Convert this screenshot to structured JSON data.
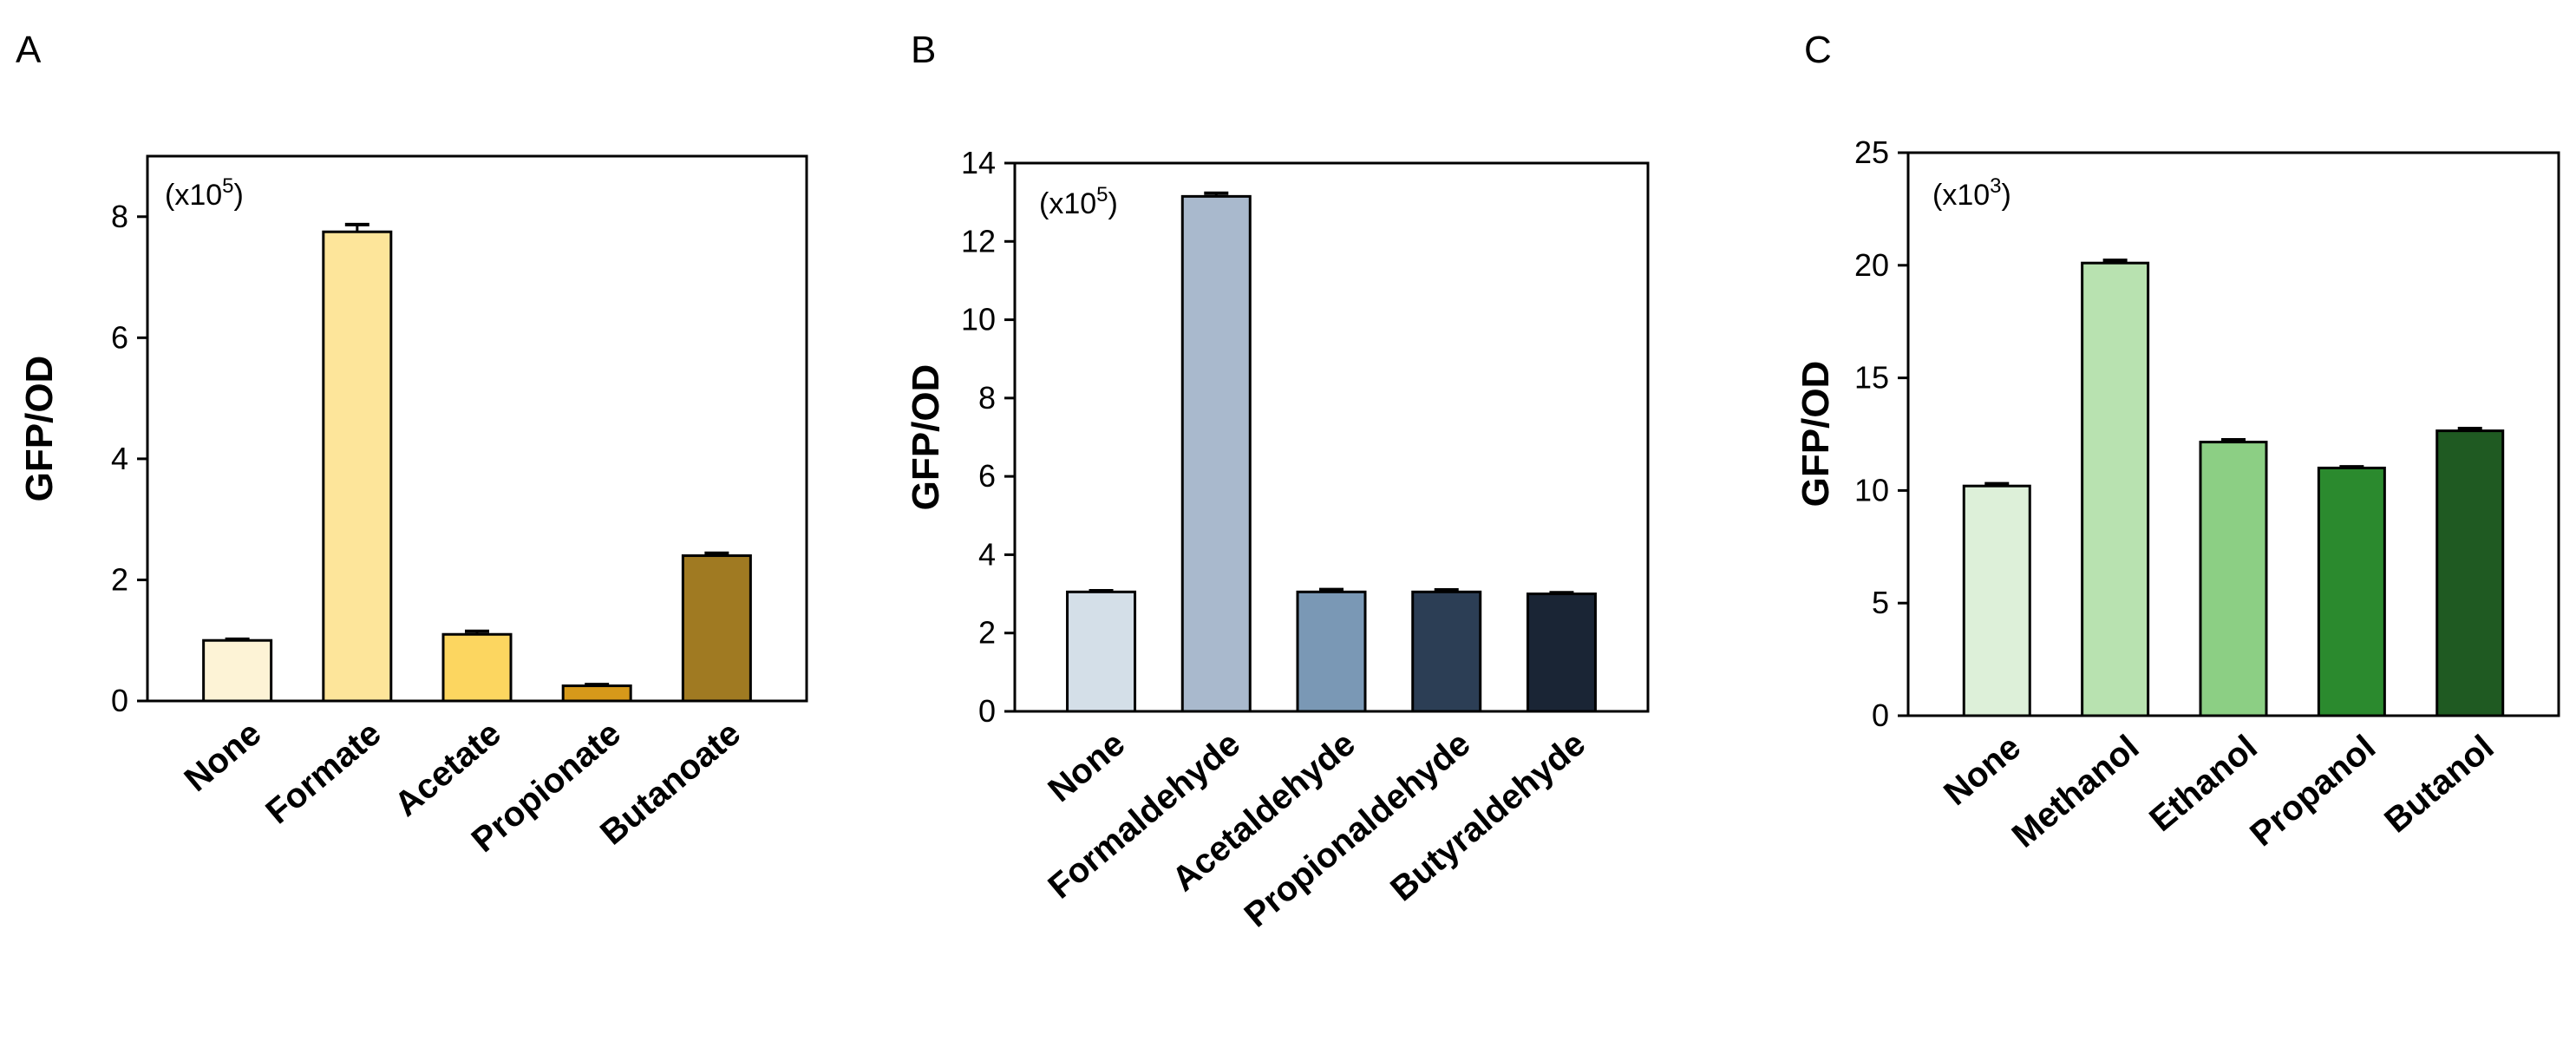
{
  "chart_data": [
    {
      "type": "bar",
      "panel": "A",
      "title": "",
      "ylabel": "GFP/OD",
      "xlabel": "",
      "multiplier": {
        "prefix": "(x10",
        "exponent": "5",
        "suffix": ")"
      },
      "ylim": [
        0,
        9
      ],
      "yticks": [
        0,
        2,
        4,
        6,
        8
      ],
      "categories": [
        "None",
        "Formate",
        "Acetate",
        "Propionate",
        "Butanoate"
      ],
      "values": [
        1.0,
        7.75,
        1.1,
        0.25,
        2.4
      ],
      "errors": [
        0.02,
        0.12,
        0.05,
        0.02,
        0.04
      ],
      "colors": [
        "#fdf3d6",
        "#fde59a",
        "#fcd660",
        "#d6991a",
        "#a07a22"
      ],
      "grid": false
    },
    {
      "type": "bar",
      "panel": "B",
      "title": "",
      "ylabel": "GFP/OD",
      "xlabel": "",
      "multiplier": {
        "prefix": "(x10",
        "exponent": "5",
        "suffix": ")"
      },
      "ylim": [
        0,
        14
      ],
      "yticks": [
        0,
        2,
        4,
        6,
        8,
        10,
        12,
        14
      ],
      "categories": [
        "None",
        "Formaldehyde",
        "Acetaldehyde",
        "Propionaldehyde",
        "Butyraldehyde"
      ],
      "values": [
        3.05,
        13.15,
        3.05,
        3.05,
        3.0
      ],
      "errors": [
        0.03,
        0.08,
        0.06,
        0.05,
        0.03
      ],
      "colors": [
        "#d4dfe8",
        "#a9b9cd",
        "#7a98b5",
        "#2c3e55",
        "#1a2535"
      ],
      "grid": false
    },
    {
      "type": "bar",
      "panel": "C",
      "title": "",
      "ylabel": "GFP/OD",
      "xlabel": "",
      "multiplier": {
        "prefix": "(x10",
        "exponent": "3",
        "suffix": ")"
      },
      "ylim": [
        0,
        25
      ],
      "yticks": [
        0,
        5,
        10,
        15,
        20,
        25
      ],
      "categories": [
        "None",
        "Methanol",
        "Ethanol",
        "Propanol",
        "Butanol"
      ],
      "values": [
        10.2,
        20.1,
        12.15,
        11.0,
        12.65
      ],
      "errors": [
        0.1,
        0.12,
        0.1,
        0.05,
        0.1
      ],
      "colors": [
        "#ddf0d9",
        "#b8e2b0",
        "#8ccf84",
        "#2b8a2e",
        "#1f5a22"
      ],
      "grid": false
    }
  ]
}
